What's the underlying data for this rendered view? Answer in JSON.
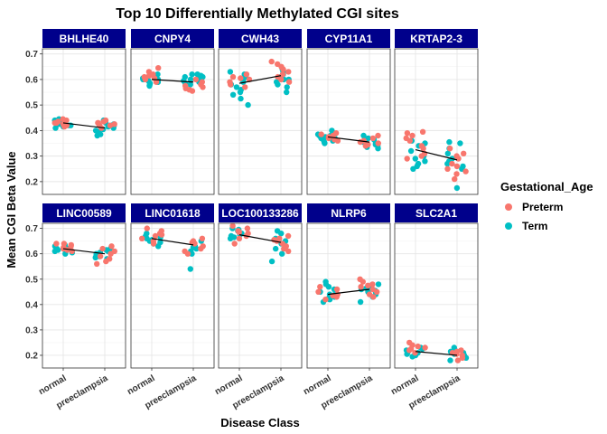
{
  "chart_data": {
    "type": "scatter",
    "title": "Top 10 Differentially Methylated CGI sites",
    "xlabel": "Disease Class",
    "ylabel": "Mean CGI Beta Value",
    "categories": [
      "normal",
      "preeclampsia"
    ],
    "ylim": [
      0.15,
      0.72
    ],
    "yticks": [
      0.2,
      0.3,
      0.4,
      0.5,
      0.6,
      0.7
    ],
    "ytick_labels": [
      "0.2",
      "0.3",
      "0.4",
      "0.5",
      "0.6",
      "0.7"
    ],
    "grid": true,
    "legend": {
      "title": "Gestational_Age",
      "position": "right",
      "entries": [
        {
          "label": "Preterm",
          "color": "#F8766D"
        },
        {
          "label": "Term",
          "color": "#00BFC4"
        }
      ]
    },
    "strip_color": "#00008B",
    "panels": [
      {
        "gene": "BHLHE40",
        "mean_normal": 0.43,
        "mean_preeclampsia": 0.41,
        "preterm": {
          "normal": [
            0.44,
            0.43,
            0.425,
            0.435,
            0.42,
            0.43,
            0.415,
            0.445
          ],
          "preeclampsia": [
            0.43,
            0.425,
            0.435,
            0.42,
            0.44,
            0.41,
            0.43,
            0.42
          ]
        },
        "term": {
          "normal": [
            0.42,
            0.43,
            0.41,
            0.425,
            0.435,
            0.415,
            0.44,
            0.42,
            0.43,
            0.425,
            0.445,
            0.42
          ],
          "preeclampsia": [
            0.39,
            0.4,
            0.41,
            0.42,
            0.38,
            0.44,
            0.425,
            0.395,
            0.405,
            0.43,
            0.415,
            0.385
          ]
        }
      },
      {
        "gene": "CNPY4",
        "mean_normal": 0.6,
        "mean_preeclampsia": 0.59,
        "preterm": {
          "normal": [
            0.645,
            0.62,
            0.6,
            0.61,
            0.59,
            0.63,
            0.615,
            0.605
          ],
          "preeclampsia": [
            0.58,
            0.56,
            0.57,
            0.6,
            0.59,
            0.565,
            0.575,
            0.555
          ]
        },
        "term": {
          "normal": [
            0.61,
            0.6,
            0.595,
            0.585,
            0.58,
            0.62,
            0.575,
            0.6,
            0.59,
            0.605,
            0.615,
            0.59
          ],
          "preeclampsia": [
            0.6,
            0.61,
            0.62,
            0.59,
            0.58,
            0.6,
            0.615,
            0.605,
            0.595,
            0.62,
            0.585,
            0.61
          ]
        }
      },
      {
        "gene": "CWH43",
        "mean_normal": 0.585,
        "mean_preeclampsia": 0.615,
        "preterm": {
          "normal": [
            0.6,
            0.58,
            0.62,
            0.59,
            0.57,
            0.605,
            0.61
          ],
          "preeclampsia": [
            0.66,
            0.65,
            0.63,
            0.62,
            0.64,
            0.6,
            0.67,
            0.61,
            0.59
          ]
        },
        "term": {
          "normal": [
            0.5,
            0.525,
            0.55,
            0.56,
            0.57,
            0.58,
            0.6,
            0.62,
            0.63,
            0.59,
            0.54,
            0.61
          ],
          "preeclampsia": [
            0.55,
            0.58,
            0.6,
            0.61,
            0.62,
            0.64,
            0.59,
            0.57,
            0.6,
            0.63
          ]
        }
      },
      {
        "gene": "CYP11A1",
        "mean_normal": 0.375,
        "mean_preeclampsia": 0.355,
        "preterm": {
          "normal": [
            0.385,
            0.37,
            0.375,
            0.39,
            0.365,
            0.38,
            0.36
          ],
          "preeclampsia": [
            0.36,
            0.35,
            0.37,
            0.34,
            0.38,
            0.355,
            0.345
          ]
        },
        "term": {
          "normal": [
            0.37,
            0.38,
            0.39,
            0.36,
            0.355,
            0.375,
            0.385,
            0.4,
            0.365,
            0.35,
            0.38,
            0.37
          ],
          "preeclampsia": [
            0.33,
            0.34,
            0.35,
            0.36,
            0.37,
            0.345,
            0.355,
            0.365,
            0.335,
            0.38
          ]
        }
      },
      {
        "gene": "KRTAP2-3",
        "mean_normal": 0.325,
        "mean_preeclampsia": 0.285,
        "preterm": {
          "normal": [
            0.39,
            0.395,
            0.38,
            0.37,
            0.36,
            0.34,
            0.33,
            0.31,
            0.3,
            0.29
          ],
          "preeclampsia": [
            0.21,
            0.23,
            0.25,
            0.27,
            0.29,
            0.31,
            0.33,
            0.26,
            0.24,
            0.3
          ]
        },
        "term": {
          "normal": [
            0.25,
            0.26,
            0.28,
            0.3,
            0.32,
            0.34,
            0.36,
            0.27,
            0.29,
            0.35
          ],
          "preeclampsia": [
            0.175,
            0.25,
            0.27,
            0.29,
            0.31,
            0.33,
            0.35,
            0.355,
            0.26,
            0.28
          ]
        }
      },
      {
        "gene": "LINC00589",
        "mean_normal": 0.62,
        "mean_preeclampsia": 0.6,
        "preterm": {
          "normal": [
            0.64,
            0.63,
            0.62,
            0.625,
            0.635,
            0.615,
            0.61,
            0.64
          ],
          "preeclampsia": [
            0.63,
            0.62,
            0.61,
            0.6,
            0.59,
            0.58,
            0.57,
            0.56
          ]
        },
        "term": {
          "normal": [
            0.6,
            0.61,
            0.62,
            0.63,
            0.615,
            0.605,
            0.625,
            0.635,
            0.62,
            0.61
          ],
          "preeclampsia": [
            0.58,
            0.59,
            0.6,
            0.61,
            0.62,
            0.595,
            0.605,
            0.585,
            0.615
          ]
        }
      },
      {
        "gene": "LINC01618",
        "mean_normal": 0.66,
        "mean_preeclampsia": 0.635,
        "preterm": {
          "normal": [
            0.7,
            0.69,
            0.68,
            0.67,
            0.66,
            0.65,
            0.64,
            0.675
          ],
          "preeclampsia": [
            0.66,
            0.65,
            0.64,
            0.63,
            0.62,
            0.6,
            0.61,
            0.645
          ]
        },
        "term": {
          "normal": [
            0.63,
            0.64,
            0.65,
            0.66,
            0.67,
            0.68,
            0.645,
            0.655,
            0.665
          ],
          "preeclampsia": [
            0.54,
            0.6,
            0.61,
            0.62,
            0.63,
            0.64,
            0.65,
            0.625
          ]
        }
      },
      {
        "gene": "LOC100133286",
        "mean_normal": 0.675,
        "mean_preeclampsia": 0.645,
        "preterm": {
          "normal": [
            0.71,
            0.7,
            0.69,
            0.68,
            0.67,
            0.66,
            0.64,
            0.685
          ],
          "preeclampsia": [
            0.67,
            0.66,
            0.65,
            0.64,
            0.63,
            0.62,
            0.61,
            0.655
          ]
        },
        "term": {
          "normal": [
            0.66,
            0.67,
            0.68,
            0.69,
            0.7,
            0.675,
            0.665,
            0.695
          ],
          "preeclampsia": [
            0.57,
            0.6,
            0.62,
            0.64,
            0.66,
            0.68,
            0.69,
            0.63,
            0.65
          ]
        }
      },
      {
        "gene": "NLRP6",
        "mean_normal": 0.44,
        "mean_preeclampsia": 0.46,
        "preterm": {
          "normal": [
            0.46,
            0.45,
            0.44,
            0.43,
            0.42,
            0.47,
            0.435
          ],
          "preeclampsia": [
            0.5,
            0.49,
            0.48,
            0.47,
            0.46,
            0.45,
            0.44,
            0.43,
            0.475
          ]
        },
        "term": {
          "normal": [
            0.41,
            0.42,
            0.43,
            0.44,
            0.45,
            0.46,
            0.47,
            0.48,
            0.49,
            0.425,
            0.445
          ],
          "preeclampsia": [
            0.41,
            0.43,
            0.44,
            0.45,
            0.46,
            0.47,
            0.48,
            0.455,
            0.465
          ]
        }
      },
      {
        "gene": "SLC2A1",
        "mean_normal": 0.215,
        "mean_preeclampsia": 0.2,
        "preterm": {
          "normal": [
            0.25,
            0.24,
            0.23,
            0.22,
            0.21,
            0.235,
            0.225
          ],
          "preeclampsia": [
            0.22,
            0.21,
            0.2,
            0.19,
            0.18,
            0.215,
            0.205
          ]
        },
        "term": {
          "normal": [
            0.2,
            0.21,
            0.22,
            0.23,
            0.205,
            0.215,
            0.225,
            0.195,
            0.21
          ],
          "preeclampsia": [
            0.18,
            0.19,
            0.2,
            0.21,
            0.22,
            0.23,
            0.195,
            0.205,
            0.215
          ]
        }
      }
    ]
  }
}
